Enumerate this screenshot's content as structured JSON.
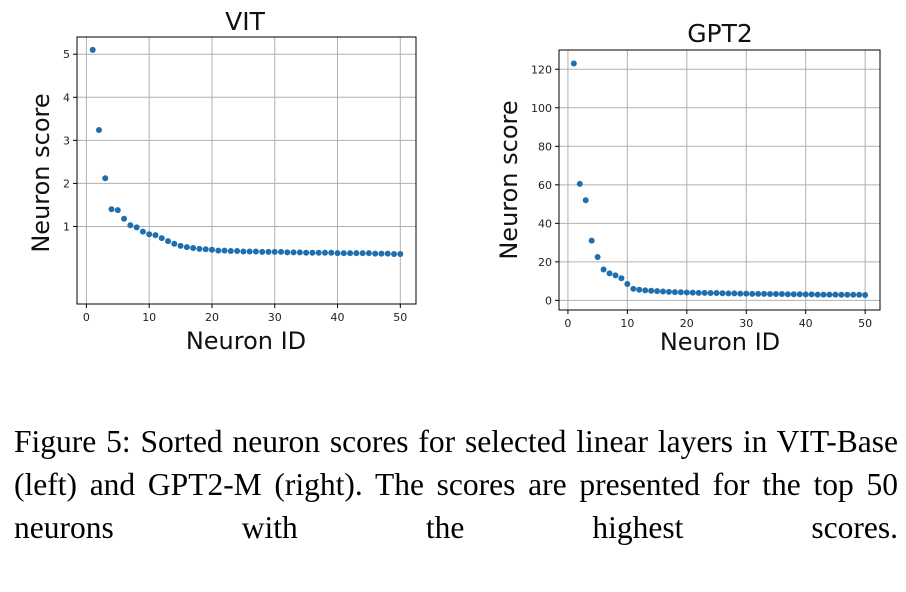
{
  "chart_data": [
    {
      "type": "scatter",
      "title": "VIT",
      "xlabel": "Neuron ID",
      "ylabel": "Neuron score",
      "xlim": [
        -1.5,
        52.5
      ],
      "ylim": [
        -0.8,
        5.4
      ],
      "xticks": [
        0,
        10,
        20,
        30,
        40,
        50
      ],
      "yticks": [
        1,
        2,
        3,
        4,
        5
      ],
      "grid": true,
      "color": "#1f6fae",
      "series": [
        {
          "x": [
            1,
            2,
            3,
            4,
            5,
            6,
            7,
            8,
            9,
            10,
            11,
            12,
            13,
            14,
            15,
            16,
            17,
            18,
            19,
            20,
            21,
            22,
            23,
            24,
            25,
            26,
            27,
            28,
            29,
            30,
            31,
            32,
            33,
            34,
            35,
            36,
            37,
            38,
            39,
            40,
            41,
            42,
            43,
            44,
            45,
            46,
            47,
            48,
            49,
            50
          ],
          "values": [
            5.1,
            3.24,
            2.12,
            1.4,
            1.38,
            1.18,
            1.03,
            0.98,
            0.88,
            0.82,
            0.8,
            0.73,
            0.66,
            0.6,
            0.55,
            0.52,
            0.5,
            0.48,
            0.47,
            0.46,
            0.44,
            0.44,
            0.43,
            0.43,
            0.42,
            0.42,
            0.42,
            0.41,
            0.41,
            0.41,
            0.41,
            0.4,
            0.4,
            0.4,
            0.39,
            0.39,
            0.39,
            0.39,
            0.39,
            0.38,
            0.38,
            0.38,
            0.38,
            0.38,
            0.38,
            0.37,
            0.37,
            0.37,
            0.36,
            0.36
          ]
        }
      ]
    },
    {
      "type": "scatter",
      "title": "GPT2",
      "xlabel": "Neuron ID",
      "ylabel": "Neuron score",
      "xlim": [
        -1.5,
        52.5
      ],
      "ylim": [
        -5,
        130
      ],
      "xticks": [
        0,
        10,
        20,
        30,
        40,
        50
      ],
      "yticks": [
        0,
        20,
        40,
        60,
        80,
        100,
        120
      ],
      "grid": true,
      "color": "#1f6fae",
      "series": [
        {
          "x": [
            1,
            2,
            3,
            4,
            5,
            6,
            7,
            8,
            9,
            10,
            11,
            12,
            13,
            14,
            15,
            16,
            17,
            18,
            19,
            20,
            21,
            22,
            23,
            24,
            25,
            26,
            27,
            28,
            29,
            30,
            31,
            32,
            33,
            34,
            35,
            36,
            37,
            38,
            39,
            40,
            41,
            42,
            43,
            44,
            45,
            46,
            47,
            48,
            49,
            50
          ],
          "values": [
            123,
            60.5,
            52,
            31,
            22.5,
            16,
            14,
            13,
            11.5,
            8.5,
            6,
            5.5,
            5.2,
            5,
            4.8,
            4.6,
            4.4,
            4.3,
            4.2,
            4.1,
            4,
            3.9,
            3.9,
            3.8,
            3.8,
            3.7,
            3.6,
            3.6,
            3.5,
            3.5,
            3.4,
            3.4,
            3.4,
            3.3,
            3.3,
            3.3,
            3.2,
            3.2,
            3.2,
            3.1,
            3.1,
            3,
            3,
            3,
            3,
            2.9,
            2.9,
            2.9,
            2.9,
            2.8
          ]
        }
      ]
    }
  ],
  "caption": "Figure 5: Sorted neuron scores for selected linear layers in VIT-Base (left) and GPT2-M (right). The scores are presented for the top 50 neurons with the highest scores."
}
